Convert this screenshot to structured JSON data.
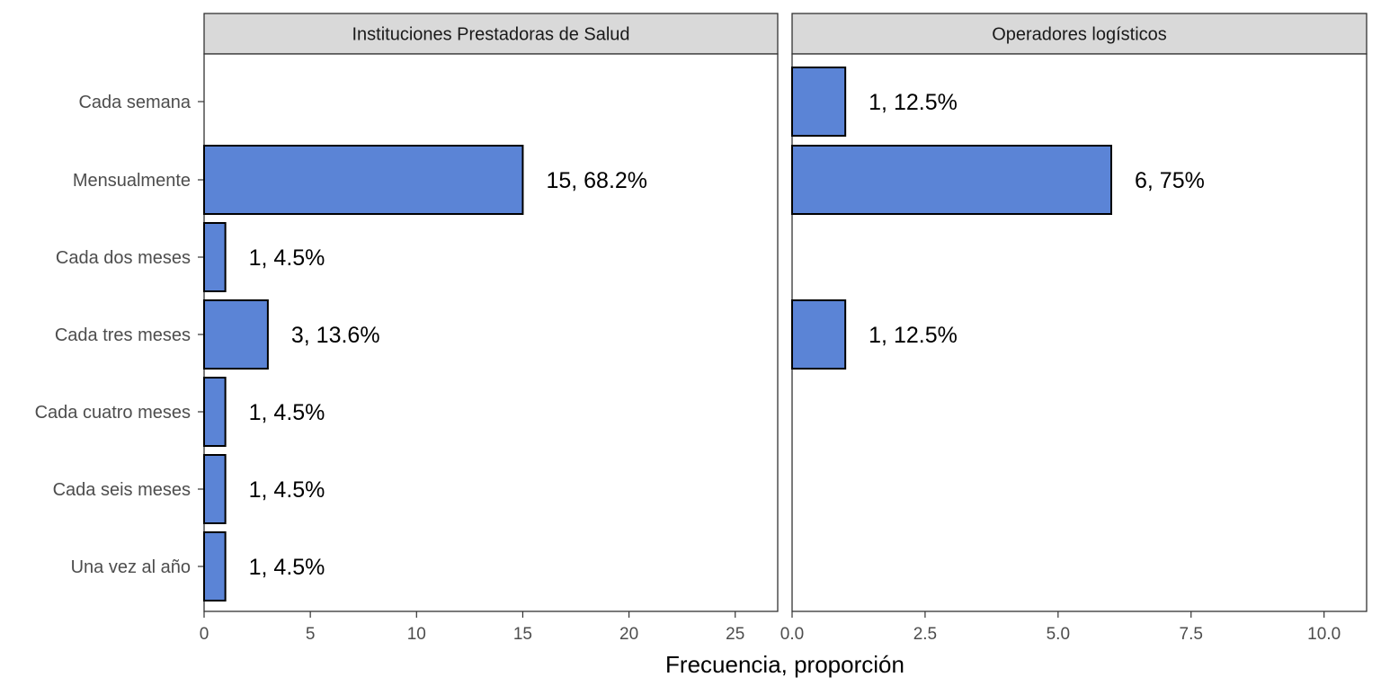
{
  "colors": {
    "bar_fill": "#5b84d6",
    "bar_stroke": "#000000",
    "strip_fill": "#d9d9d9",
    "panel_border": "#333333"
  },
  "chart_data": {
    "type": "bar",
    "orientation": "horizontal",
    "xlabel": "Frecuencia, proporción",
    "categories": [
      "Cada semana",
      "Mensualmente",
      "Cada dos meses",
      "Cada tres meses",
      "Cada cuatro meses",
      "Cada seis meses",
      "Una vez al año"
    ],
    "grid": false,
    "panels": [
      {
        "title": "Instituciones Prestadoras de Salud",
        "xlim": [
          0,
          27
        ],
        "ticks": [
          "0",
          "5",
          "10",
          "15",
          "20",
          "25"
        ],
        "tick_values": [
          0,
          5,
          10,
          15,
          20,
          25
        ],
        "values": [
          null,
          15,
          1,
          3,
          1,
          1,
          1
        ],
        "labels": [
          "",
          "15, 68.2%",
          "1, 4.5%",
          "3, 13.6%",
          "1, 4.5%",
          "1, 4.5%",
          "1, 4.5%"
        ]
      },
      {
        "title": "Operadores logísticos",
        "xlim": [
          0,
          10.8
        ],
        "ticks": [
          "0.0",
          "2.5",
          "5.0",
          "7.5",
          "10.0"
        ],
        "tick_values": [
          0,
          2.5,
          5,
          7.5,
          10
        ],
        "values": [
          1,
          6,
          null,
          1,
          null,
          null,
          null
        ],
        "labels": [
          "1, 12.5%",
          "6, 75%",
          "",
          "1, 12.5%",
          "",
          "",
          ""
        ]
      }
    ]
  }
}
